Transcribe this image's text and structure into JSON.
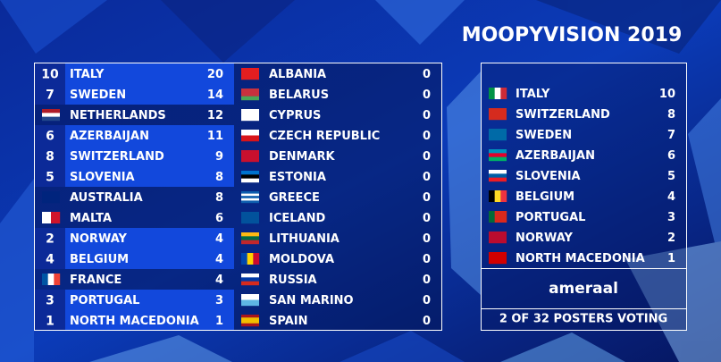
{
  "title": "MOOPYVISION 2019",
  "scoreboard": {
    "columns": [
      [
        {
          "points": 10,
          "country": "ITALY",
          "total": 20
        },
        {
          "points": 7,
          "country": "SWEDEN",
          "total": 14
        },
        {
          "flag": {
            "colors": [
              "#ae1c28",
              "#ffffff",
              "#21468b"
            ]
          },
          "country": "NETHERLANDS",
          "total": 12
        },
        {
          "points": 6,
          "country": "AZERBAIJAN",
          "total": 11
        },
        {
          "points": 8,
          "country": "SWITZERLAND",
          "total": 9
        },
        {
          "points": 5,
          "country": "SLOVENIA",
          "total": 8
        },
        {
          "flag": {
            "colors": [
              "#00247d"
            ]
          },
          "country": "AUSTRALIA",
          "total": 8
        },
        {
          "flag": {
            "colors": [
              "#ffffff",
              "#cf142b"
            ],
            "vertical": true
          },
          "country": "MALTA",
          "total": 6
        },
        {
          "points": 2,
          "country": "NORWAY",
          "total": 4
        },
        {
          "points": 4,
          "country": "BELGIUM",
          "total": 4
        },
        {
          "flag": {
            "colors": [
              "#0055a4",
              "#ffffff",
              "#ef4135"
            ],
            "vertical": true
          },
          "country": "FRANCE",
          "total": 4
        },
        {
          "points": 3,
          "country": "PORTUGAL",
          "total": 3
        },
        {
          "points": 1,
          "country": "NORTH MACEDONIA",
          "total": 1
        }
      ],
      [
        {
          "flag": {
            "colors": [
              "#e41e20"
            ]
          },
          "country": "ALBANIA",
          "total": 0
        },
        {
          "flag": {
            "colors": [
              "#c8313e",
              "#c8313e",
              "#4aa657"
            ]
          },
          "country": "BELARUS",
          "total": 0
        },
        {
          "flag": {
            "colors": [
              "#ffffff"
            ]
          },
          "country": "CYPRUS",
          "total": 0
        },
        {
          "flag": {
            "colors": [
              "#ffffff",
              "#d7141a"
            ]
          },
          "country": "CZECH REPUBLIC",
          "total": 0
        },
        {
          "flag": {
            "colors": [
              "#c8102e"
            ]
          },
          "country": "DENMARK",
          "total": 0
        },
        {
          "flag": {
            "colors": [
              "#0072ce",
              "#000000",
              "#ffffff"
            ]
          },
          "country": "ESTONIA",
          "total": 0
        },
        {
          "flag": {
            "colors": [
              "#0d5eaf",
              "#ffffff",
              "#0d5eaf",
              "#ffffff",
              "#0d5eaf"
            ]
          },
          "country": "GREECE",
          "total": 0
        },
        {
          "flag": {
            "colors": [
              "#02529c"
            ]
          },
          "country": "ICELAND",
          "total": 0
        },
        {
          "flag": {
            "colors": [
              "#fdb913",
              "#006a44",
              "#c1272d"
            ]
          },
          "country": "LITHUANIA",
          "total": 0
        },
        {
          "flag": {
            "colors": [
              "#0046ae",
              "#ffd200",
              "#cc092f"
            ],
            "vertical": true
          },
          "country": "MOLDOVA",
          "total": 0
        },
        {
          "flag": {
            "colors": [
              "#ffffff",
              "#0039a6",
              "#d52b1e"
            ]
          },
          "country": "RUSSIA",
          "total": 0
        },
        {
          "flag": {
            "colors": [
              "#ffffff",
              "#5eb6e4"
            ]
          },
          "country": "SAN MARINO",
          "total": 0
        },
        {
          "flag": {
            "colors": [
              "#aa151b",
              "#f1bf00",
              "#f1bf00",
              "#aa151b"
            ]
          },
          "country": "SPAIN",
          "total": 0
        }
      ]
    ]
  },
  "votes": {
    "rows": [
      {
        "flag": {
          "colors": [
            "#009246",
            "#ffffff",
            "#ce2b37"
          ],
          "vertical": true
        },
        "country": "ITALY",
        "points": 10
      },
      {
        "flag": {
          "colors": [
            "#d52b1e"
          ]
        },
        "country": "SWITZERLAND",
        "points": 8
      },
      {
        "flag": {
          "colors": [
            "#006aa7"
          ]
        },
        "country": "SWEDEN",
        "points": 7
      },
      {
        "flag": {
          "colors": [
            "#0092bc",
            "#e4002b",
            "#00af66"
          ]
        },
        "country": "AZERBAIJAN",
        "points": 6
      },
      {
        "flag": {
          "colors": [
            "#ffffff",
            "#005da4",
            "#ed1c24"
          ]
        },
        "country": "SLOVENIA",
        "points": 5
      },
      {
        "flag": {
          "colors": [
            "#000000",
            "#fdda24",
            "#ef3340"
          ],
          "vertical": true
        },
        "country": "BELGIUM",
        "points": 4
      },
      {
        "flag": {
          "colors": [
            "#046a38",
            "#da291c",
            "#da291c"
          ],
          "vertical": true
        },
        "country": "PORTUGAL",
        "points": 3
      },
      {
        "flag": {
          "colors": [
            "#ba0c2f"
          ]
        },
        "country": "NORWAY",
        "points": 2
      },
      {
        "flag": {
          "colors": [
            "#d20000"
          ]
        },
        "country": "NORTH MACEDONIA",
        "points": 1
      }
    ],
    "voter": "ameraal",
    "status": "2 OF 32 POSTERS VOTING"
  }
}
